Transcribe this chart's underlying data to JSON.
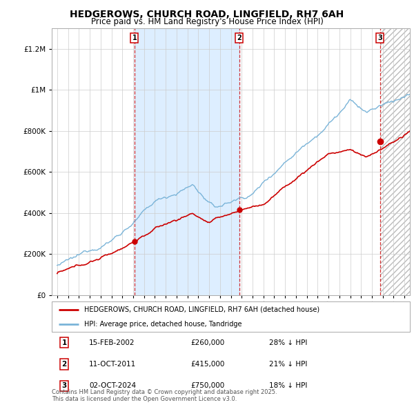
{
  "title": "HEDGEROWS, CHURCH ROAD, LINGFIELD, RH7 6AH",
  "subtitle": "Price paid vs. HM Land Registry's House Price Index (HPI)",
  "title_fontsize": 10,
  "subtitle_fontsize": 8.5,
  "background_color": "#ffffff",
  "plot_bg_color": "#ffffff",
  "grid_color": "#cccccc",
  "sale1": {
    "label": "1",
    "date": "15-FEB-2002",
    "price": 260000,
    "pct": "28% ↓ HPI",
    "x": 2002.12
  },
  "sale2": {
    "label": "2",
    "date": "11-OCT-2011",
    "price": 415000,
    "pct": "21% ↓ HPI",
    "x": 2011.78
  },
  "sale3": {
    "label": "3",
    "date": "02-OCT-2024",
    "price": 750000,
    "pct": "18% ↓ HPI",
    "x": 2024.75
  },
  "ylim": [
    0,
    1300000
  ],
  "xlim": [
    1994.5,
    2027.5
  ],
  "hpi_color": "#7ab4d8",
  "price_color": "#cc0000",
  "vline_color": "#cc0000",
  "shade_color": "#ddeeff",
  "hatch_color": "#cccccc",
  "footer": "Contains HM Land Registry data © Crown copyright and database right 2025.\nThis data is licensed under the Open Government Licence v3.0."
}
